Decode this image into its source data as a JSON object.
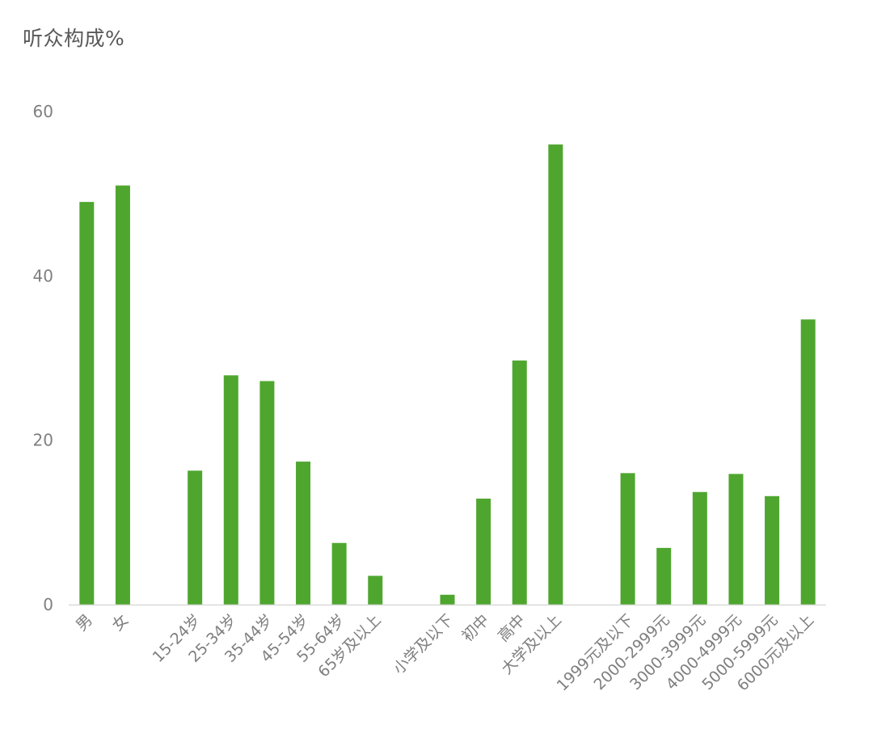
{
  "chart_data": {
    "type": "bar",
    "title": "听众构成%",
    "xlabel": "",
    "ylabel": "",
    "ylim": [
      0,
      60
    ],
    "yticks": [
      0,
      20,
      40,
      60
    ],
    "grid": false,
    "legend": "none",
    "bar_color": "#4fa62f",
    "axis_color": "#d9d9d9",
    "text_color": "#7f7f7f",
    "categories": [
      "男",
      "女",
      "",
      "15-24岁",
      "25-34岁",
      "35-44岁",
      "45-54岁",
      "55-64岁",
      "65岁及以上",
      "",
      "小学及以下",
      "初中",
      "高中",
      "大学及以上",
      "",
      "1999元及以下",
      "2000-2999元",
      "3000-3999元",
      "4000-4999元",
      "5000-5999元",
      "6000元及以上"
    ],
    "values": [
      49,
      51,
      null,
      16.3,
      27.9,
      27.2,
      17.4,
      7.5,
      3.5,
      null,
      1.2,
      12.9,
      29.7,
      56,
      null,
      16,
      6.9,
      13.7,
      15.9,
      13.2,
      34.7
    ]
  }
}
